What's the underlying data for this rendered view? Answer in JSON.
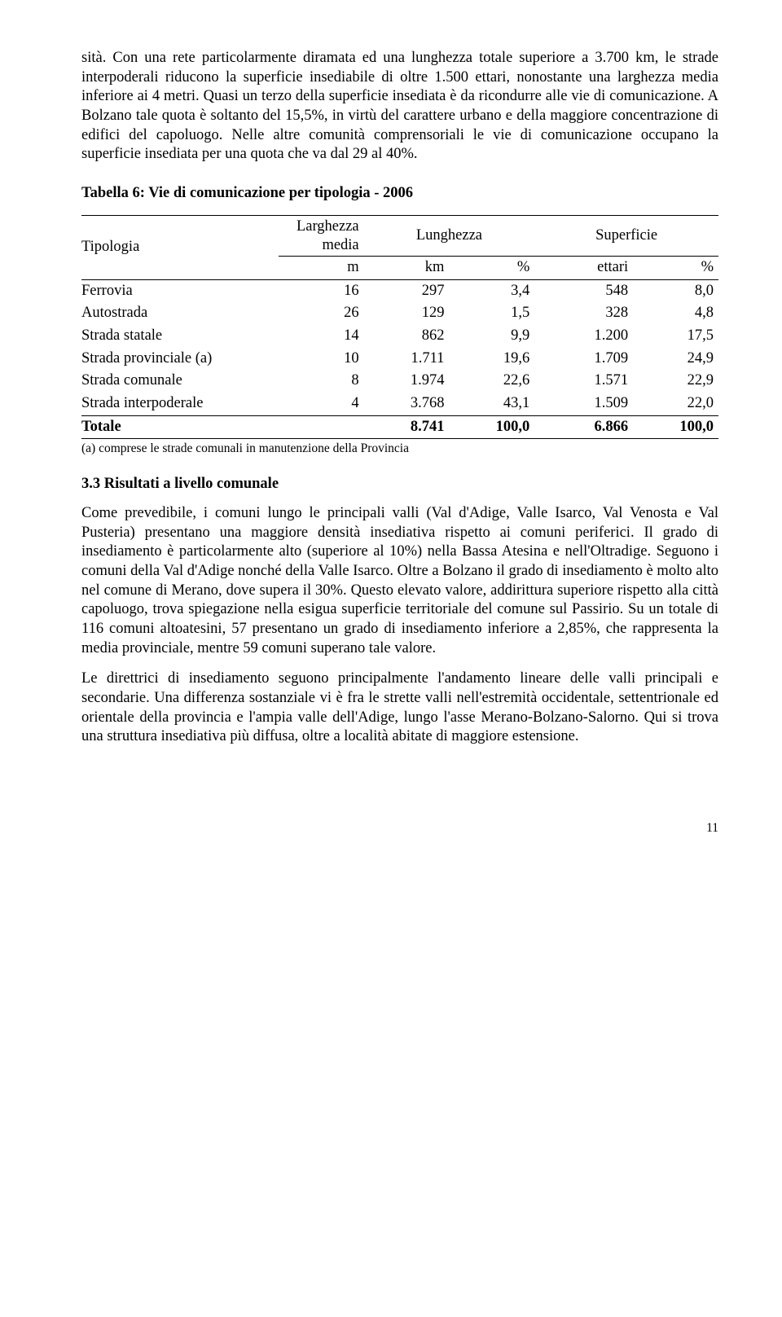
{
  "para1": "sità. Con una rete particolarmente diramata ed una lunghezza totale superiore a 3.700 km, le strade interpoderali riducono la superficie insediabile di oltre 1.500 ettari, nonostante una larghezza media inferiore ai 4 metri. Quasi un terzo della superficie insediata è da ricondurre alle vie di comunicazione. A Bolzano tale quota è soltanto del 15,5%, in virtù del carattere urbano e della maggiore concentrazione di edifici del capoluogo. Nelle altre comunità comprensoriali le vie di comunicazione occupano la superficie insediata per una quota che va dal 29 al 40%.",
  "table": {
    "title": "Tabella 6: Vie di comunicazione per tipologia - 2006",
    "header": {
      "c0": "Tipologia",
      "c1a": "Larghezza",
      "c1b": "media",
      "c2": "Lunghezza",
      "c3": "Superficie",
      "u_m": "m",
      "u_km": "km",
      "u_pct": "%",
      "u_ett": "ettari"
    },
    "rows": [
      {
        "label": "Ferrovia",
        "m": "16",
        "km": "297",
        "kmpct": "3,4",
        "ett": "548",
        "ettpct": "8,0"
      },
      {
        "label": "Autostrada",
        "m": "26",
        "km": "129",
        "kmpct": "1,5",
        "ett": "328",
        "ettpct": "4,8"
      },
      {
        "label": "Strada statale",
        "m": "14",
        "km": "862",
        "kmpct": "9,9",
        "ett": "1.200",
        "ettpct": "17,5"
      },
      {
        "label": "Strada provinciale (a)",
        "m": "10",
        "km": "1.711",
        "kmpct": "19,6",
        "ett": "1.709",
        "ettpct": "24,9"
      },
      {
        "label": "Strada comunale",
        "m": "8",
        "km": "1.974",
        "kmpct": "22,6",
        "ett": "1.571",
        "ettpct": "22,9"
      },
      {
        "label": "Strada interpoderale",
        "m": "4",
        "km": "3.768",
        "kmpct": "43,1",
        "ett": "1.509",
        "ettpct": "22,0"
      }
    ],
    "total": {
      "label": "Totale",
      "m": "",
      "km": "8.741",
      "kmpct": "100,0",
      "ett": "6.866",
      "ettpct": "100,0"
    },
    "footnote": "(a) comprese le strade comunali in manutenzione della Provincia"
  },
  "section": {
    "heading": "3.3 Risultati a livello comunale",
    "para2": "Come prevedibile, i comuni lungo le principali valli (Val d'Adige, Valle Isarco, Val Venosta e Val Pusteria) presentano una maggiore densità insediativa rispetto ai comuni periferici. Il grado di insediamento è particolarmente alto (superiore al 10%) nella Bassa Atesina e nell'Oltradige. Seguono i comuni della Val d'Adige nonché della Valle Isarco. Oltre a Bolzano il grado di insediamento è molto alto nel comune di Merano, dove supera il 30%. Questo elevato valore, addirittura superiore rispetto alla città capoluogo, trova spiegazione nella esigua superficie territoriale del comune sul Passirio. Su un totale di 116 comuni altoatesini, 57 presentano un grado di insediamento inferiore a 2,85%, che rappresenta la media provinciale, mentre 59 comuni superano tale valore.",
    "para3": "Le direttrici di insediamento seguono principalmente l'andamento lineare delle valli principali e secondarie. Una differenza sostanziale vi è fra le strette valli nell'estremità occidentale, settentrionale ed orientale della provincia e l'ampia valle dell'Adige, lungo l'asse Merano-Bolzano-Salorno. Qui si trova una struttura insediativa più diffusa, oltre a località abitate di maggiore estensione."
  },
  "pagenum": "11"
}
